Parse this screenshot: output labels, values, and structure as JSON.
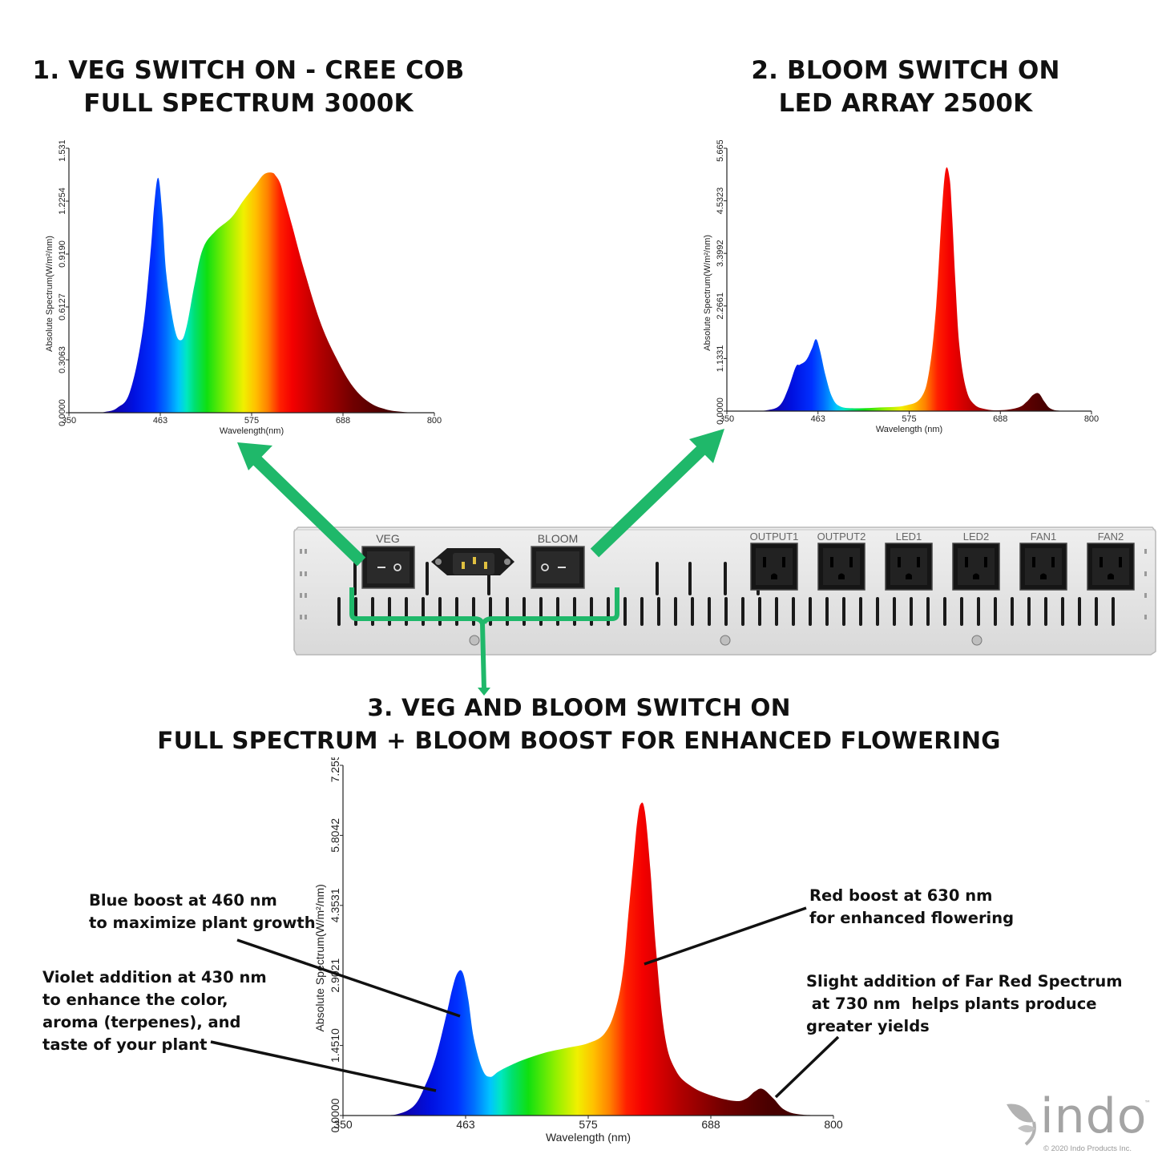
{
  "headings": {
    "veg": [
      "1. VEG SWITCH ON - CREE COB",
      "FULL SPECTRUM 3000K"
    ],
    "bloom": [
      "2. BLOOM SWITCH ON",
      "LED ARRAY 2500K"
    ],
    "combined": [
      "3.  VEG AND BLOOM SWITCH ON",
      "FULL SPECTRUM + BLOOM BOOST FOR ENHANCED FLOWERING"
    ]
  },
  "device": {
    "switch_labels": [
      "VEG",
      "BLOOM"
    ],
    "outlet_labels": [
      "OUTPUT1",
      "OUTPUT2",
      "LED1",
      "LED2",
      "FAN1",
      "FAN2"
    ]
  },
  "annotations": {
    "blue": [
      "Blue boost at 460 nm",
      "to maximize plant growth"
    ],
    "violet": [
      "Violet addition at 430 nm",
      "to enhance the color,",
      "aroma (terpenes), and",
      "taste of your plant"
    ],
    "red": [
      "Red boost at 630 nm",
      "for enhanced flowering"
    ],
    "farred": [
      "Slight addition of Far Red Spectrum",
      " at 730 nm  helps plants produce",
      "greater yields"
    ]
  },
  "brand": {
    "logo_text": "indo",
    "trademark": "™",
    "copyright": "© 2020 Indo Products Inc."
  },
  "colors": {
    "arrow_green": "#1fb86a",
    "panel_gray": "#e4e4e4"
  },
  "chart_data": [
    {
      "type": "area",
      "title": "",
      "xlabel": "Wavelength(nm)",
      "ylabel": "Absolute Spectrum(W/m²/nm)",
      "xlim": [
        350,
        800
      ],
      "ylim": [
        0,
        1.5317
      ],
      "xticks": [
        "350",
        "463",
        "575",
        "688",
        "800"
      ],
      "yticks": [
        "0.0000",
        "0.3063",
        "0.6127",
        "0.9190",
        "1.2254",
        "1.5317"
      ],
      "x": [
        350,
        380,
        395,
        410,
        425,
        440,
        450,
        455,
        460,
        465,
        470,
        480,
        488,
        495,
        505,
        515,
        530,
        550,
        565,
        580,
        590,
        600,
        605,
        610,
        615,
        625,
        640,
        660,
        680,
        700,
        720,
        740,
        760,
        780,
        800
      ],
      "y": [
        0,
        0,
        0.005,
        0.03,
        0.12,
        0.45,
        0.9,
        1.2,
        1.36,
        1.15,
        0.8,
        0.49,
        0.42,
        0.5,
        0.75,
        0.95,
        1.05,
        1.13,
        1.23,
        1.32,
        1.38,
        1.39,
        1.37,
        1.33,
        1.25,
        1.08,
        0.82,
        0.52,
        0.31,
        0.15,
        0.06,
        0.02,
        0.005,
        0,
        0
      ]
    },
    {
      "type": "area",
      "title": "",
      "xlabel": "Wavelength (nm)",
      "ylabel": "Absolute Spectrum(W/m²/nm)",
      "xlim": [
        350,
        800
      ],
      "ylim": [
        0,
        5.6654
      ],
      "xticks": [
        "350",
        "463",
        "575",
        "688",
        "800"
      ],
      "yticks": [
        "0.0000",
        "1.1331",
        "2.2661",
        "3.3992",
        "4.5323",
        "5.6654"
      ],
      "x": [
        350,
        370,
        385,
        400,
        415,
        425,
        435,
        440,
        448,
        455,
        460,
        465,
        472,
        480,
        490,
        510,
        540,
        570,
        590,
        600,
        608,
        615,
        620,
        625,
        628,
        632,
        637,
        645,
        655,
        670,
        690,
        710,
        720,
        728,
        735,
        742,
        750,
        765,
        800
      ],
      "y": [
        0,
        0,
        0.005,
        0.02,
        0.12,
        0.45,
        0.95,
        1.0,
        1.1,
        1.35,
        1.55,
        1.3,
        0.75,
        0.3,
        0.1,
        0.06,
        0.08,
        0.12,
        0.3,
        0.9,
        2.2,
        4.2,
        5.2,
        5.0,
        4.2,
        2.8,
        1.4,
        0.5,
        0.15,
        0.04,
        0.02,
        0.08,
        0.2,
        0.35,
        0.38,
        0.2,
        0.05,
        0.005,
        0
      ]
    },
    {
      "type": "area",
      "title": "",
      "xlabel": "Wavelength (nm)",
      "ylabel": "Absolute Spectrum(W/m²/nm)",
      "xlim": [
        350,
        800
      ],
      "ylim": [
        0,
        7.2552
      ],
      "xticks": [
        "350",
        "463",
        "575",
        "688",
        "800"
      ],
      "yticks": [
        "0.0000",
        "1.4510",
        "2.9021",
        "4.3531",
        "5.8042",
        "7.2552"
      ],
      "x": [
        350,
        370,
        385,
        400,
        415,
        425,
        435,
        445,
        450,
        455,
        460,
        465,
        470,
        478,
        485,
        492,
        500,
        515,
        535,
        555,
        575,
        590,
        600,
        607,
        612,
        617,
        620,
        623,
        627,
        632,
        637,
        645,
        655,
        670,
        690,
        710,
        720,
        728,
        735,
        745,
        755,
        770,
        800
      ],
      "y": [
        0,
        0,
        0.005,
        0.03,
        0.2,
        0.6,
        1.2,
        2.1,
        2.6,
        2.95,
        2.95,
        2.4,
        1.6,
        0.95,
        0.8,
        0.9,
        1.0,
        1.15,
        1.3,
        1.4,
        1.5,
        1.7,
        2.2,
        3.0,
        4.2,
        5.4,
        6.1,
        6.45,
        6.3,
        5.1,
        3.5,
        1.7,
        0.95,
        0.6,
        0.4,
        0.3,
        0.35,
        0.5,
        0.55,
        0.35,
        0.12,
        0.02,
        0
      ]
    }
  ]
}
